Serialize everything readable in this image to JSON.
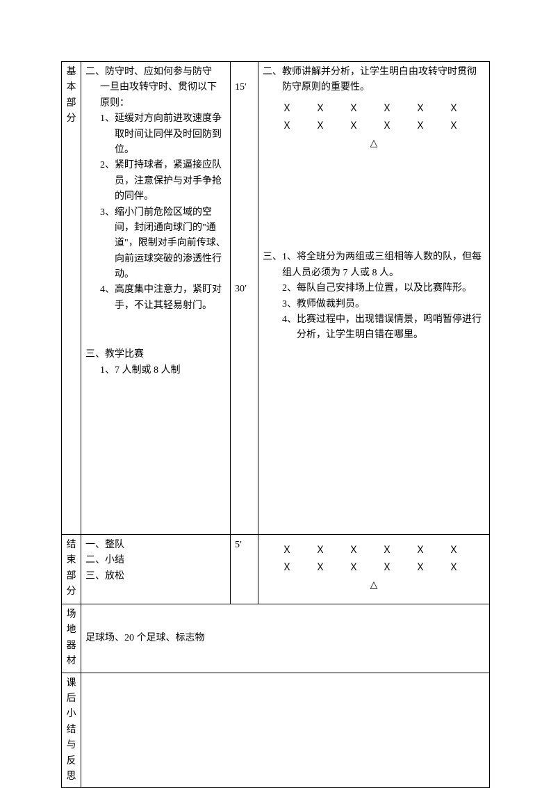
{
  "labels": {
    "basic": "基本部分",
    "end": "结束部分",
    "field": "场地器材",
    "reflect": "课后小结与反思"
  },
  "basic": {
    "section2": {
      "title": "二、防守时、应如何参与防守",
      "intro": "一旦由攻转守时、贯彻以下原则：",
      "items": [
        "1、延缓对方向前进攻速度争取时间让同伴及时回防到位。",
        "2、紧盯持球者，紧逼接应队员，注意保护与对手争抢的同伴。",
        "3、缩小门前危险区域的空间，封闭通向球门的\"通道\"，限制对手向前传球、向前运球突破的渗透性行动。",
        "4、高度集中注意力，紧盯对手，不让其轻易射门。"
      ],
      "time": "15′",
      "method_title": "二、教师讲解并分析，让学生明白由攻转守时贯彻防守原则的重要性。",
      "formation_row": "Ｘ　Ｘ　Ｘ　Ｘ　Ｘ　Ｘ",
      "triangle": "△"
    },
    "section3": {
      "title": "三、教学比赛",
      "sub": "1、7 人制或 8 人制",
      "time": "30′",
      "method_title": "三、1、将全班分为两组或三组相等人数的队，但每组人员必须为 7 人或 8 人。",
      "method_items": [
        "2、每队自己安排场上位置，以及比赛阵形。",
        "3、教师做裁判员。",
        "4、比赛过程中，出现错误情景，鸣哨暂停进行分析，让学生明白错在哪里。"
      ]
    }
  },
  "end": {
    "items": [
      "一、整队",
      "二、小结",
      "三、放松"
    ],
    "time": "5′",
    "formation_row": "Ｘ　Ｘ　Ｘ　Ｘ　Ｘ　Ｘ",
    "triangle": "△"
  },
  "field": {
    "text": "足球场、20 个足球、标志物"
  },
  "reflect": {
    "text": ""
  }
}
